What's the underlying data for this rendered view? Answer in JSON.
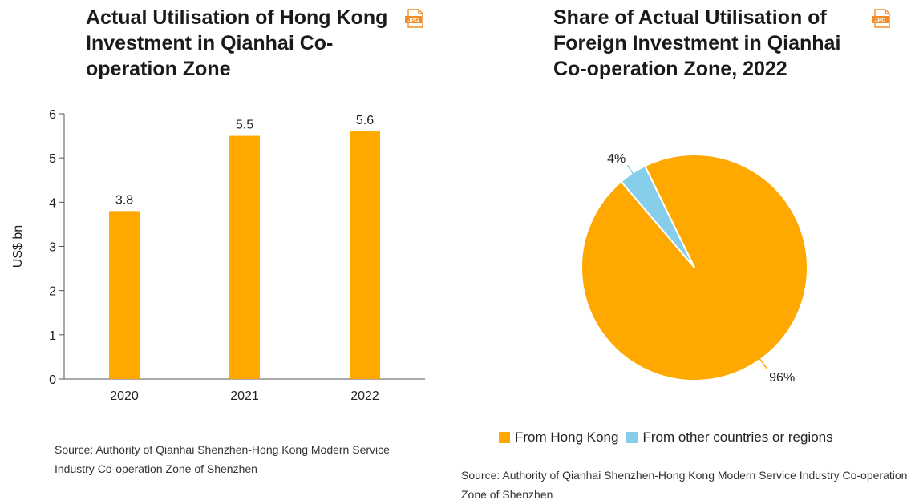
{
  "left": {
    "title": "Actual Utilisation of Hong Kong Investment in Qianhai Co-operation Zone",
    "export_icon": "jpg-file-icon",
    "export_label": "JPG",
    "source": "Source: Authority of Qianhai Shenzhen-Hong Kong Modern Service Industry Co-operation Zone of Shenzhen"
  },
  "right": {
    "title": "Share of Actual Utilisation of Foreign Investment in Qianhai Co-operation Zone, 2022",
    "export_icon": "jpg-file-icon",
    "export_label": "JPG",
    "source": "Source: Authority of Qianhai Shenzhen-Hong Kong Modern Service Industry Co-operation Zone of Shenzhen"
  },
  "colors": {
    "orange": "#FFA800",
    "blue": "#87CEEB",
    "axis": "#555555"
  },
  "chart_data": [
    {
      "type": "bar",
      "title": "Actual Utilisation of Hong Kong Investment in Qianhai Co-operation Zone",
      "categories": [
        "2020",
        "2021",
        "2022"
      ],
      "values": [
        3.8,
        5.5,
        5.6
      ],
      "data_labels": [
        "3.8",
        "5.5",
        "5.6"
      ],
      "xlabel": "",
      "ylabel": "US$ bn",
      "ylim": [
        0,
        6
      ],
      "yticks": [
        0,
        1,
        2,
        3,
        4,
        5,
        6
      ],
      "grid": false,
      "color": "#FFA800"
    },
    {
      "type": "pie",
      "title": "Share of Actual Utilisation of Foreign Investment in Qianhai Co-operation Zone, 2022",
      "slices": [
        {
          "label": "From Hong Kong",
          "value": 96,
          "value_label": "96%",
          "color": "#FFA800"
        },
        {
          "label": "From other countries or regions",
          "value": 4,
          "value_label": "4%",
          "color": "#87CEEB"
        }
      ],
      "legend_position": "bottom"
    }
  ]
}
